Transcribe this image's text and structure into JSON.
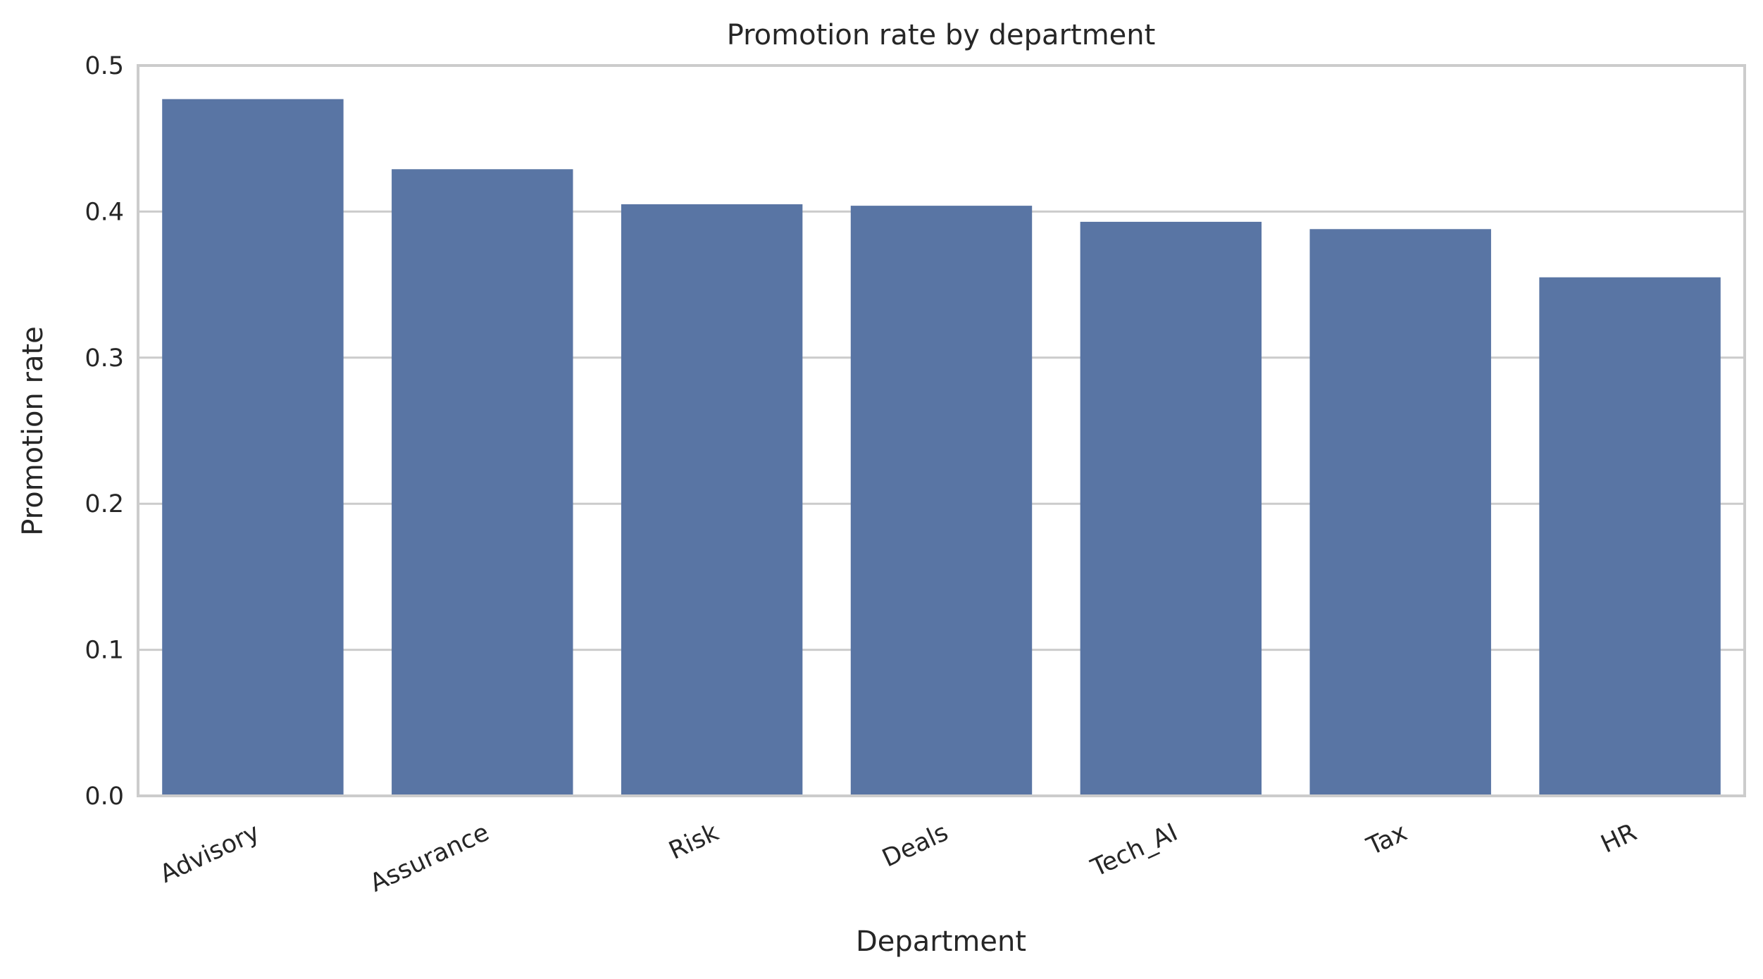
{
  "chart_data": {
    "type": "bar",
    "title": "Promotion rate by department",
    "xlabel": "Department",
    "ylabel": "Promotion rate",
    "categories": [
      "Advisory",
      "Assurance",
      "Risk",
      "Deals",
      "Tech_AI",
      "Tax",
      "HR"
    ],
    "values": [
      0.477,
      0.429,
      0.405,
      0.404,
      0.393,
      0.388,
      0.355
    ],
    "ylim": [
      0,
      0.5
    ],
    "yticks": [
      0.0,
      0.1,
      0.2,
      0.3,
      0.4,
      0.5
    ],
    "ytick_labels": [
      "0.0",
      "0.1",
      "0.2",
      "0.3",
      "0.4",
      "0.5"
    ],
    "xtick_rotation_deg": 25,
    "grid": "horizontal",
    "legend": "none",
    "colors": {
      "bar": "#5975a4",
      "grid": "#cccccc",
      "frame": "#cccccc",
      "text": "#262626",
      "background": "#ffffff"
    }
  }
}
